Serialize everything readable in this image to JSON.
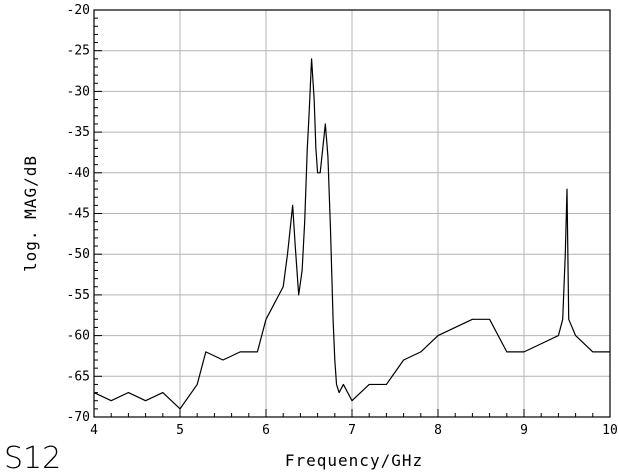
{
  "chart_data": {
    "type": "line",
    "xlabel": "Frequency/GHz",
    "ylabel": "log. MAG/dB",
    "corner_label": "S12",
    "xlim": [
      4,
      10
    ],
    "ylim": [
      -70,
      -20
    ],
    "x_ticks": [
      "4",
      "5",
      "6",
      "7",
      "8",
      "9",
      "10"
    ],
    "y_ticks": [
      "-20",
      "-25",
      "-30",
      "-35",
      "-40",
      "-45",
      "-50",
      "-55",
      "-60",
      "-65",
      "-70"
    ],
    "grid": true,
    "series": [
      {
        "x": [
          4.0,
          4.2,
          4.4,
          4.6,
          4.8,
          5.0,
          5.2,
          5.3,
          5.5,
          5.7,
          5.9,
          6.0,
          6.05,
          6.1,
          6.15,
          6.2,
          6.25,
          6.28,
          6.31,
          6.34,
          6.38,
          6.42,
          6.45,
          6.48,
          6.5,
          6.53,
          6.56,
          6.58,
          6.6,
          6.63,
          6.66,
          6.69,
          6.72,
          6.75,
          6.78,
          6.8,
          6.82,
          6.85,
          6.9,
          7.0,
          7.2,
          7.4,
          7.6,
          7.8,
          8.0,
          8.2,
          8.4,
          8.6,
          8.8,
          9.0,
          9.2,
          9.4,
          9.45,
          9.48,
          9.5,
          9.52,
          9.6,
          9.8,
          10.0
        ],
        "y": [
          -67,
          -68,
          -67,
          -68,
          -67,
          -69,
          -66,
          -62,
          -63,
          -62,
          -62,
          -58,
          -57,
          -56,
          -55,
          -54,
          -50,
          -47,
          -44,
          -49,
          -55,
          -52,
          -46,
          -37,
          -33,
          -26,
          -31,
          -37,
          -40,
          -40,
          -37,
          -34,
          -38,
          -47,
          -58,
          -63,
          -66,
          -67,
          -66,
          -68,
          -66,
          -66,
          -63,
          -62,
          -60,
          -59,
          -58,
          -58,
          -62,
          -62,
          -61,
          -60,
          -58,
          -50,
          -42,
          -58,
          -60,
          -62,
          -62
        ]
      }
    ]
  }
}
